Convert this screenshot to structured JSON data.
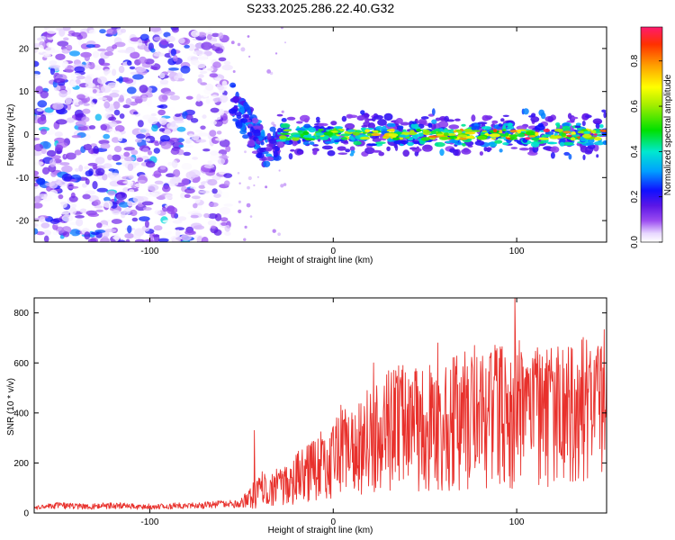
{
  "title": "S233.2025.286.22.40.G32",
  "colors": {
    "snr_line": "#e8312c",
    "axis": "#000000"
  },
  "chart_data": [
    {
      "type": "heatmap",
      "xlabel": "Height of straight line (km)",
      "ylabel": "Frequency (Hz)",
      "xlim": [
        -163,
        149
      ],
      "ylim": [
        -25,
        25
      ],
      "xticks": [
        -100,
        0,
        100
      ],
      "xtick_labels": [
        "-100",
        "0",
        "100"
      ],
      "yticks": [
        -20,
        -10,
        0,
        10,
        20
      ],
      "ytick_labels": [
        "-20",
        "-10",
        "0",
        "10",
        "20"
      ],
      "colorbar": {
        "label": "Normalized spectral amplitude",
        "range": [
          0.0,
          0.95
        ],
        "ticks": [
          0.0,
          0.2,
          0.4,
          0.6,
          0.8
        ],
        "tick_labels": [
          "0.0",
          "0.2",
          "0.4",
          "0.6",
          "0.8"
        ]
      },
      "features": [
        {
          "region": "noise",
          "x_range": [
            -163,
            -55
          ],
          "freq_range": [
            -25,
            25
          ],
          "amplitude": 0.12
        },
        {
          "region": "onset",
          "x_range": [
            -55,
            -30
          ],
          "freq_range": [
            -10,
            12
          ],
          "amplitude": 0.15
        },
        {
          "region": "signal_band",
          "x_range": [
            -30,
            149
          ],
          "center_freq": 0,
          "amplitude_range": [
            0.2,
            0.95
          ]
        }
      ]
    },
    {
      "type": "line",
      "xlabel": "Height of straight line (km)",
      "ylabel": "SNR (10 * v/v)",
      "xlim": [
        -163,
        149
      ],
      "ylim": [
        0,
        860
      ],
      "xticks": [
        -100,
        0,
        100
      ],
      "xtick_labels": [
        "-100",
        "0",
        "100"
      ],
      "yticks": [
        0,
        200,
        400,
        600,
        800
      ],
      "ytick_labels": [
        "0",
        "200",
        "400",
        "600",
        "800"
      ],
      "series": [
        {
          "name": "SNR",
          "x": [
            -163,
            -150,
            -135,
            -120,
            -105,
            -90,
            -75,
            -60,
            -50,
            -45,
            -40,
            -35,
            -30,
            -25,
            -20,
            -15,
            -10,
            -5,
            0,
            5,
            10,
            15,
            20,
            25,
            30,
            35,
            40,
            45,
            50,
            55,
            60,
            65,
            70,
            75,
            80,
            85,
            90,
            95,
            100,
            105,
            110,
            115,
            120,
            125,
            130,
            135,
            140,
            145,
            149
          ],
          "values": [
            20,
            30,
            25,
            30,
            25,
            28,
            30,
            35,
            35,
            60,
            90,
            110,
            100,
            110,
            140,
            160,
            180,
            190,
            200,
            250,
            240,
            260,
            300,
            310,
            330,
            340,
            330,
            350,
            350,
            360,
            350,
            360,
            370,
            370,
            360,
            370,
            380,
            380,
            380,
            390,
            380,
            390,
            400,
            390,
            400,
            400,
            410,
            400,
            420
          ],
          "peaks": [
            {
              "x": -43,
              "y": 330
            },
            {
              "x": 22,
              "y": 600
            },
            {
              "x": 38,
              "y": 590
            },
            {
              "x": 57,
              "y": 680
            },
            {
              "x": 77,
              "y": 670
            },
            {
              "x": 99,
              "y": 860
            },
            {
              "x": 118,
              "y": 560
            },
            {
              "x": 147,
              "y": 580
            }
          ]
        }
      ]
    }
  ]
}
